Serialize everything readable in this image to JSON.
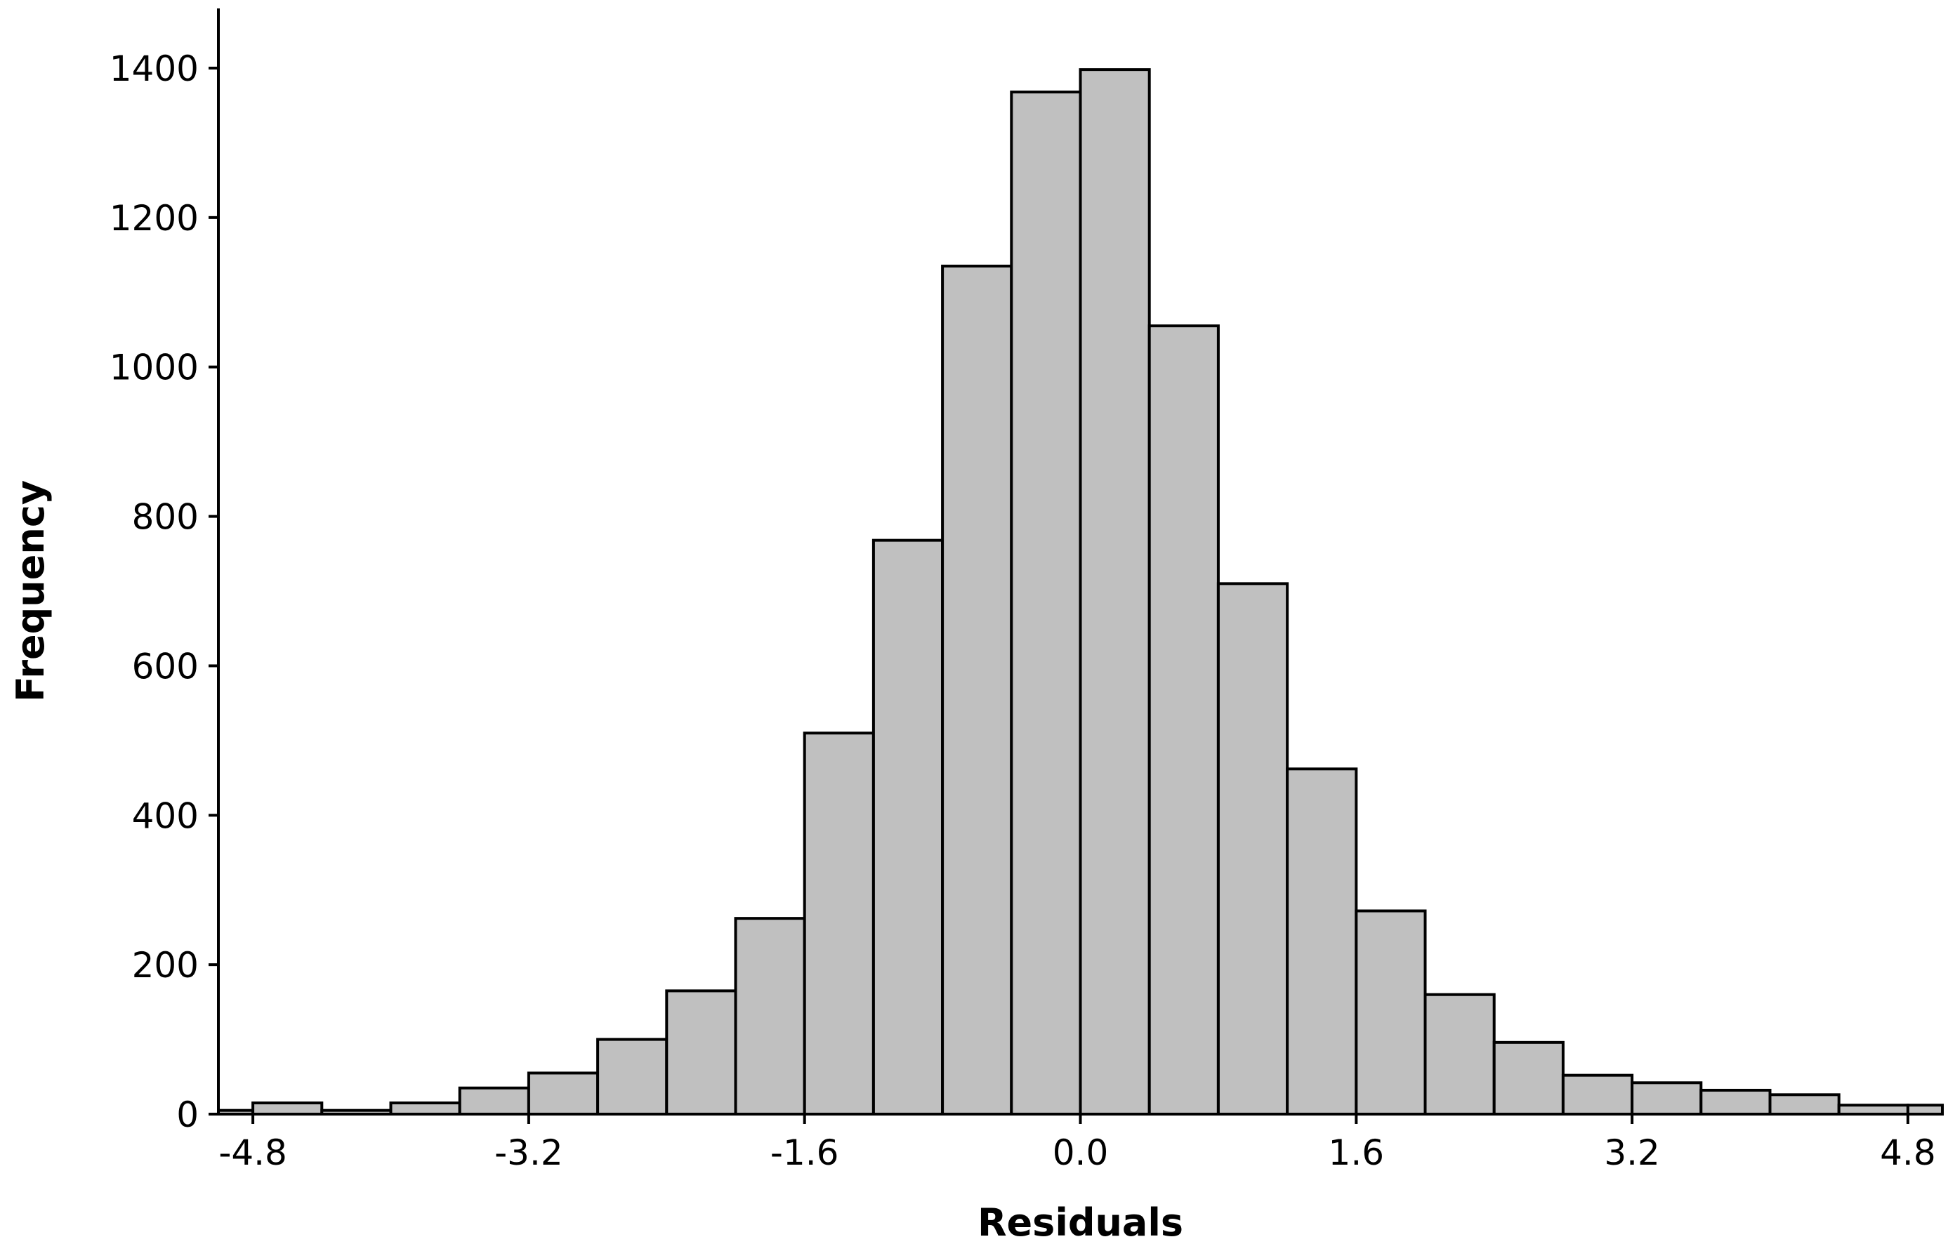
{
  "chart_data": {
    "type": "histogram",
    "xlabel": "Residuals",
    "ylabel": "Frequency",
    "xlim": [
      -5.0,
      5.0
    ],
    "ylim": [
      0,
      1400
    ],
    "xticks": [
      -4.8,
      -3.2,
      -1.6,
      0.0,
      1.6,
      3.2,
      4.8
    ],
    "xtick_labels": [
      "-4.8",
      "-3.2",
      "-1.6",
      "0.0",
      "1.6",
      "3.2",
      "4.8"
    ],
    "yticks": [
      0,
      200,
      400,
      600,
      800,
      1000,
      1200,
      1400
    ],
    "ytick_labels": [
      "0",
      "200",
      "400",
      "600",
      "800",
      "1000",
      "1200",
      "1400"
    ],
    "bins": [
      {
        "x0": -5.0,
        "x1": -4.8,
        "count": 5
      },
      {
        "x0": -4.8,
        "x1": -4.4,
        "count": 15
      },
      {
        "x0": -4.4,
        "x1": -4.0,
        "count": 5
      },
      {
        "x0": -4.0,
        "x1": -3.6,
        "count": 15
      },
      {
        "x0": -3.6,
        "x1": -3.2,
        "count": 35
      },
      {
        "x0": -3.2,
        "x1": -2.8,
        "count": 55
      },
      {
        "x0": -2.8,
        "x1": -2.4,
        "count": 100
      },
      {
        "x0": -2.4,
        "x1": -2.0,
        "count": 165
      },
      {
        "x0": -2.0,
        "x1": -1.6,
        "count": 262
      },
      {
        "x0": -1.6,
        "x1": -1.2,
        "count": 510
      },
      {
        "x0": -1.2,
        "x1": -0.8,
        "count": 768
      },
      {
        "x0": -0.8,
        "x1": -0.4,
        "count": 1135
      },
      {
        "x0": -0.4,
        "x1": 0.0,
        "count": 1368
      },
      {
        "x0": 0.0,
        "x1": 0.4,
        "count": 1398
      },
      {
        "x0": 0.4,
        "x1": 0.8,
        "count": 1055
      },
      {
        "x0": 0.8,
        "x1": 1.2,
        "count": 710
      },
      {
        "x0": 1.2,
        "x1": 1.6,
        "count": 462
      },
      {
        "x0": 1.6,
        "x1": 2.0,
        "count": 272
      },
      {
        "x0": 2.0,
        "x1": 2.4,
        "count": 160
      },
      {
        "x0": 2.4,
        "x1": 2.8,
        "count": 96
      },
      {
        "x0": 2.8,
        "x1": 3.2,
        "count": 52
      },
      {
        "x0": 3.2,
        "x1": 3.6,
        "count": 42
      },
      {
        "x0": 3.6,
        "x1": 4.0,
        "count": 32
      },
      {
        "x0": 4.0,
        "x1": 4.4,
        "count": 26
      },
      {
        "x0": 4.4,
        "x1": 4.8,
        "count": 12
      },
      {
        "x0": 4.8,
        "x1": 5.0,
        "count": 12
      }
    ],
    "grid": false,
    "legend": "none",
    "colors": {
      "bar_fill": "#c0c0c0",
      "bar_stroke": "#000000"
    }
  }
}
